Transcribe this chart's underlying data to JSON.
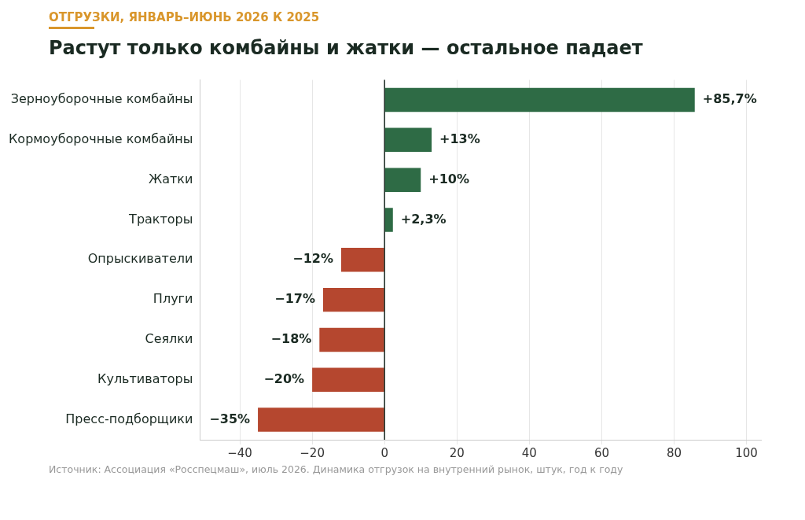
{
  "chart_data": {
    "type": "bar",
    "orientation": "horizontal",
    "subtitle": "ОТГРУЗКИ, ЯНВАРЬ–ИЮНЬ 2026 К 2025",
    "title": "Растут только комбайны и жатки — остальное падает",
    "categories": [
      "Зерноуборочные комбайны",
      "Кормоуборочные комбайны",
      "Жатки",
      "Тракторы",
      "Опрыскиватели",
      "Плуги",
      "Сеялки",
      "Культиваторы",
      "Пресс-подборщики"
    ],
    "values": [
      85.7,
      13,
      10,
      2.3,
      -12,
      -17,
      -18,
      -20,
      -35
    ],
    "colors": [
      "#2e6b45",
      "#2e6b45",
      "#2e6b45",
      "#2e6b45",
      "#b5472f",
      "#b5472f",
      "#b5472f",
      "#b5472f",
      "#b5472f"
    ],
    "value_labels": [
      "+85,7%",
      "+13%",
      "+10%",
      "+2,3%",
      "−12%",
      "−17%",
      "−18%",
      "−20%",
      "−35%"
    ],
    "xlim": [
      -51,
      104
    ],
    "xticks": [
      {
        "value": -40,
        "label": "−40"
      },
      {
        "value": -20,
        "label": "−20"
      },
      0,
      20,
      40,
      60,
      80,
      100
    ],
    "grid": "x",
    "legend": false,
    "ref_lines": [
      {
        "axis": "x",
        "value": 0,
        "color": "#1a2a22"
      }
    ],
    "annotations": [
      "Источник: Ассоциация «Росспецмаш», июль 2026. Динамика отгрузок на внутренний рынок, штук, год к году"
    ]
  }
}
